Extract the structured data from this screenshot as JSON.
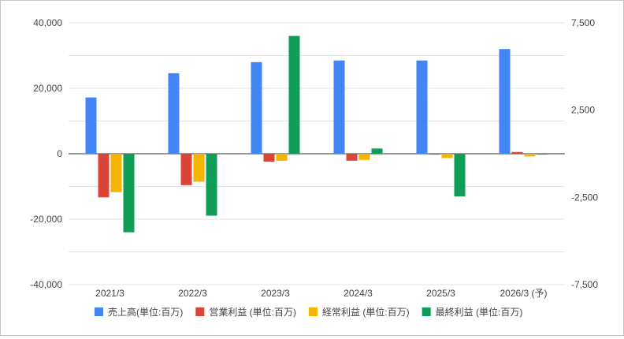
{
  "chart_data": {
    "type": "bar",
    "categories": [
      "2021/3",
      "2022/3",
      "2023/3",
      "2024/3",
      "2025/3",
      "2026/3 (予)"
    ],
    "series": [
      {
        "name": "売上高(単位:百万)",
        "axis": "left",
        "color": "#4285f4",
        "values": [
          17200,
          24600,
          28000,
          28500,
          28500,
          32000
        ]
      },
      {
        "name": "営業利益 (単位:百万)",
        "axis": "right",
        "color": "#db4437",
        "values": [
          -2500,
          -1800,
          -450,
          -400,
          -50,
          100
        ]
      },
      {
        "name": "経常利益 (単位:百万)",
        "axis": "right",
        "color": "#f4b400",
        "values": [
          -2200,
          -1600,
          -400,
          -350,
          -250,
          -150
        ]
      },
      {
        "name": "最終利益 (単位:百万)",
        "axis": "right",
        "color": "#0f9d58",
        "values": [
          -4500,
          -3550,
          6750,
          300,
          -2450,
          -50
        ]
      }
    ],
    "y_left": {
      "ticks": [
        "40,000",
        "20,000",
        "0",
        "-20,000",
        "-40,000"
      ],
      "ylim": [
        -40000,
        40000
      ]
    },
    "y_right": {
      "ticks": [
        "7,500",
        "2,500",
        "-2,500",
        "-7,500"
      ],
      "ylim": [
        -7500,
        7500
      ]
    },
    "grid": true,
    "legend_position": "bottom"
  }
}
